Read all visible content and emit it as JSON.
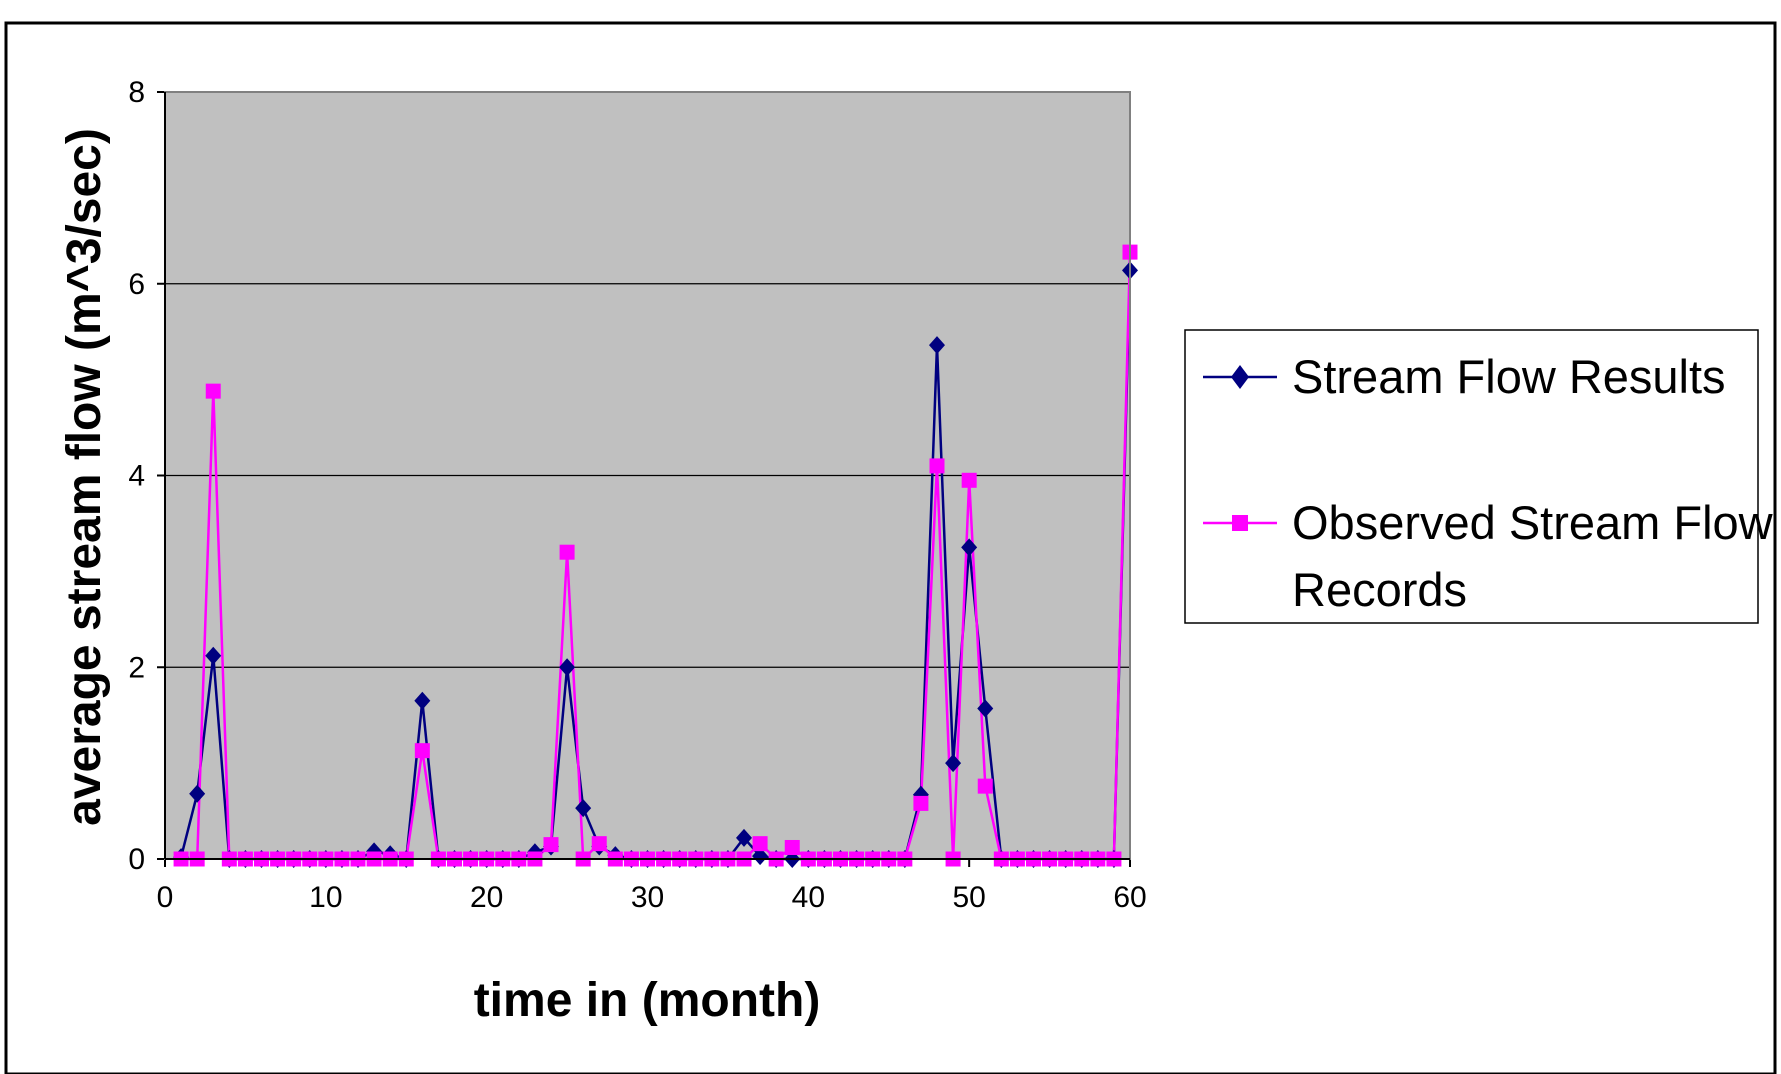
{
  "chart_data": {
    "type": "line",
    "title": "",
    "xlabel": "time in (month)",
    "ylabel": "average stream flow (m^3/sec)",
    "xlim": [
      0,
      60
    ],
    "ylim": [
      0,
      8
    ],
    "xticks": [
      0,
      10,
      20,
      30,
      40,
      50,
      60
    ],
    "yticks": [
      0,
      2,
      4,
      6,
      8
    ],
    "grid": "horizontal",
    "plot_background": "#c0c0c0",
    "legend_position": "right",
    "series": [
      {
        "name": "Stream Flow Results",
        "color": "#000080",
        "marker": "diamond",
        "x": [
          1,
          2,
          3,
          4,
          5,
          6,
          7,
          8,
          9,
          10,
          11,
          12,
          13,
          14,
          15,
          16,
          17,
          18,
          19,
          20,
          21,
          22,
          23,
          24,
          25,
          26,
          27,
          28,
          29,
          30,
          31,
          32,
          33,
          34,
          35,
          36,
          37,
          38,
          39,
          40,
          41,
          42,
          43,
          44,
          45,
          46,
          47,
          48,
          49,
          50,
          51,
          52,
          53,
          54,
          55,
          56,
          57,
          58,
          59,
          60
        ],
        "y": [
          0.02,
          0.68,
          2.12,
          0,
          0,
          0,
          0,
          0,
          0,
          0,
          0,
          0,
          0.08,
          0.05,
          0,
          1.65,
          0,
          0,
          0,
          0,
          0,
          0,
          0.07,
          0.13,
          2.0,
          0.53,
          0.13,
          0.04,
          0,
          0,
          0,
          0,
          0,
          0,
          0,
          0.22,
          0.03,
          0,
          0,
          0,
          0,
          0,
          0,
          0,
          0,
          0,
          0.67,
          5.36,
          1.0,
          3.25,
          1.57,
          0,
          0,
          0,
          0,
          0,
          0,
          0,
          0,
          6.14
        ]
      },
      {
        "name": "Observed Stream Flow Records",
        "color": "#ff00ff",
        "marker": "square",
        "x": [
          1,
          2,
          3,
          4,
          5,
          6,
          7,
          8,
          9,
          10,
          11,
          12,
          13,
          14,
          15,
          16,
          17,
          18,
          19,
          20,
          21,
          22,
          23,
          24,
          25,
          26,
          27,
          28,
          29,
          30,
          31,
          32,
          33,
          34,
          35,
          36,
          37,
          38,
          39,
          40,
          41,
          42,
          43,
          44,
          45,
          46,
          47,
          48,
          49,
          50,
          51,
          52,
          53,
          54,
          55,
          56,
          57,
          58,
          59,
          60
        ],
        "y": [
          0,
          0,
          4.88,
          0,
          0,
          0,
          0,
          0,
          0,
          0,
          0,
          0,
          0,
          0,
          0,
          1.13,
          0,
          0,
          0,
          0,
          0,
          0,
          0,
          0.15,
          3.2,
          0,
          0.16,
          0,
          0,
          0,
          0,
          0,
          0,
          0,
          0,
          0,
          0.16,
          0,
          0.12,
          0,
          0,
          0,
          0,
          0,
          0,
          0,
          0.58,
          4.1,
          0,
          3.95,
          0.76,
          0,
          0,
          0,
          0,
          0,
          0,
          0,
          0,
          6.33
        ]
      }
    ],
    "legend_entries": [
      "Stream Flow Results",
      "Observed Stream Flow Records"
    ]
  }
}
